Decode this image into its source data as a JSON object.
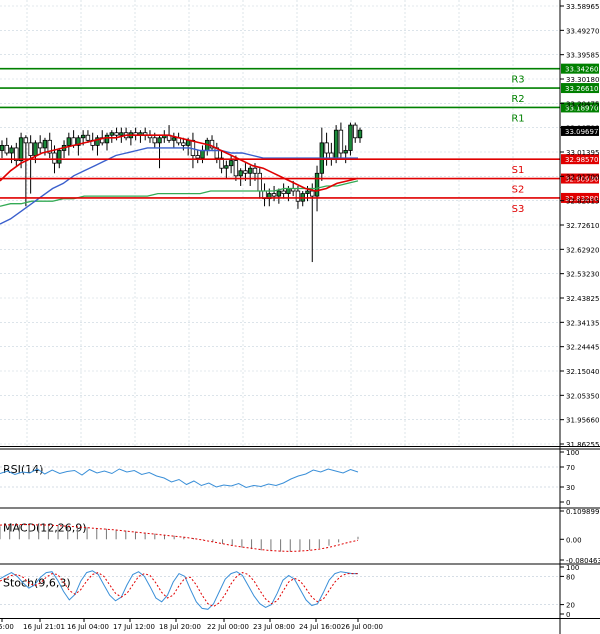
{
  "colors": {
    "resistance": "#008000",
    "support": "#e00000",
    "ma_fast": "#e00000",
    "ma_mid": "#3a5fcd",
    "ma_slow": "#33aa55",
    "candle": "#1b8a3a",
    "rsi": "#3a8fd8",
    "macd_signal": "#e00000",
    "stoch_main": "#3a8fd8",
    "stoch_signal": "#e00000",
    "grid": "#c8d3dd",
    "current_tag": "#000000"
  },
  "chart_data": {
    "type": "candlestick",
    "y_ticks": [
      "33.58965",
      "33.49270",
      "33.39585",
      "33.30180",
      "33.20475",
      "33.10790",
      "33.01395",
      "32.91700",
      "32.82015",
      "32.72610",
      "32.62920",
      "32.53230",
      "32.43825",
      "32.34135",
      "32.24445",
      "32.15040",
      "32.05350",
      "31.95660",
      "31.86255"
    ],
    "x_ticks": [
      "5:00",
      "16 Jul 21:01",
      "16 Jul 04:00",
      "17 Jul 12:00",
      "18 Jul 20:00",
      "22 Jul 00:00",
      "23 Jul 08:00",
      "24 Jul 16:00",
      "26 Jul 00:00"
    ],
    "ylim": [
      31.86255,
      33.58965
    ],
    "current_price": "33.09697",
    "levels": [
      {
        "name": "R3",
        "value": 33.3426,
        "tag": "33.34260",
        "kind": "resistance"
      },
      {
        "name": "R2",
        "value": 33.2661,
        "tag": "33.26610",
        "kind": "resistance"
      },
      {
        "name": "R1",
        "value": 33.1897,
        "tag": "33.18970",
        "kind": "resistance"
      },
      {
        "name": "S1",
        "value": 32.9857,
        "tag": "32.98570",
        "kind": "support"
      },
      {
        "name": "S2",
        "value": 32.9093,
        "tag": "32.90930",
        "kind": "support"
      },
      {
        "name": "S3",
        "value": 32.8328,
        "tag": "32.83280",
        "kind": "support"
      }
    ],
    "candles": [
      [
        33.02,
        33.06,
        32.99,
        33.04
      ],
      [
        33.04,
        33.07,
        33.0,
        33.01
      ],
      [
        33.01,
        33.04,
        32.97,
        33.03
      ],
      [
        33.03,
        33.05,
        32.96,
        32.98
      ],
      [
        32.98,
        33.09,
        32.95,
        33.07
      ],
      [
        33.07,
        33.08,
        32.8,
        33.05
      ],
      [
        33.05,
        33.08,
        32.85,
        33.0
      ],
      [
        33.0,
        33.06,
        32.97,
        33.05
      ],
      [
        33.05,
        33.08,
        33.01,
        33.03
      ],
      [
        33.03,
        33.07,
        33.0,
        33.06
      ],
      [
        33.06,
        33.09,
        32.99,
        33.01
      ],
      [
        33.01,
        33.04,
        32.93,
        32.97
      ],
      [
        32.97,
        33.03,
        32.95,
        33.02
      ],
      [
        33.02,
        33.06,
        32.99,
        33.04
      ],
      [
        33.04,
        33.09,
        33.0,
        33.07
      ],
      [
        33.07,
        33.1,
        33.03,
        33.04
      ],
      [
        33.04,
        33.08,
        33.0,
        33.07
      ],
      [
        33.07,
        33.1,
        33.04,
        33.08
      ],
      [
        33.08,
        33.1,
        33.05,
        33.06
      ],
      [
        33.06,
        33.09,
        33.02,
        33.04
      ],
      [
        33.04,
        33.08,
        33.0,
        33.07
      ],
      [
        33.07,
        33.1,
        33.04,
        33.05
      ],
      [
        33.05,
        33.09,
        33.02,
        33.08
      ],
      [
        33.08,
        33.1,
        33.05,
        33.09
      ],
      [
        33.09,
        33.11,
        33.06,
        33.08
      ],
      [
        33.08,
        33.11,
        33.05,
        33.09
      ],
      [
        33.09,
        33.11,
        33.06,
        33.07
      ],
      [
        33.07,
        33.1,
        33.04,
        33.09
      ],
      [
        33.09,
        33.11,
        33.06,
        33.08
      ],
      [
        33.08,
        33.1,
        33.05,
        33.09
      ],
      [
        33.09,
        33.11,
        33.06,
        33.08
      ],
      [
        33.08,
        33.1,
        33.05,
        33.07
      ],
      [
        33.07,
        33.09,
        33.03,
        33.05
      ],
      [
        33.05,
        33.08,
        32.95,
        33.07
      ],
      [
        33.07,
        33.1,
        33.05,
        33.08
      ],
      [
        33.08,
        33.12,
        33.05,
        33.06
      ],
      [
        33.06,
        33.09,
        33.03,
        33.07
      ],
      [
        33.07,
        33.09,
        33.04,
        33.05
      ],
      [
        33.05,
        33.07,
        33.02,
        33.04
      ],
      [
        33.04,
        33.07,
        33.0,
        33.06
      ],
      [
        33.06,
        33.09,
        32.95,
        33.0
      ],
      [
        33.0,
        33.02,
        32.97,
        32.99
      ],
      [
        32.99,
        33.04,
        32.97,
        33.02
      ],
      [
        33.02,
        33.07,
        33.0,
        33.06
      ],
      [
        33.06,
        33.08,
        33.02,
        33.03
      ],
      [
        33.03,
        33.05,
        32.97,
        32.99
      ],
      [
        32.99,
        33.02,
        32.93,
        32.95
      ],
      [
        32.95,
        32.98,
        32.91,
        32.96
      ],
      [
        32.96,
        33.0,
        32.93,
        32.98
      ],
      [
        32.98,
        33.0,
        32.9,
        32.92
      ],
      [
        32.92,
        32.95,
        32.88,
        32.94
      ],
      [
        32.94,
        32.97,
        32.9,
        32.93
      ],
      [
        32.93,
        32.96,
        32.88,
        32.95
      ],
      [
        32.95,
        32.97,
        32.9,
        32.93
      ],
      [
        32.93,
        32.95,
        32.83,
        32.86
      ],
      [
        32.86,
        32.89,
        32.8,
        32.83
      ],
      [
        32.83,
        32.87,
        32.8,
        32.85
      ],
      [
        32.85,
        32.88,
        32.82,
        32.84
      ],
      [
        32.84,
        32.87,
        32.81,
        32.86
      ],
      [
        32.86,
        32.89,
        32.83,
        32.85
      ],
      [
        32.85,
        32.88,
        32.82,
        32.87
      ],
      [
        32.87,
        32.9,
        32.84,
        32.86
      ],
      [
        32.86,
        32.88,
        32.79,
        32.82
      ],
      [
        32.82,
        32.86,
        32.8,
        32.85
      ],
      [
        32.85,
        32.88,
        32.82,
        32.86
      ],
      [
        32.86,
        32.89,
        32.58,
        32.84
      ],
      [
        32.84,
        32.96,
        32.78,
        32.93
      ],
      [
        32.93,
        33.11,
        32.9,
        33.05
      ],
      [
        33.05,
        33.09,
        32.96,
        33.01
      ],
      [
        33.01,
        33.05,
        32.96,
        32.99
      ],
      [
        32.99,
        33.12,
        32.97,
        33.1
      ],
      [
        33.1,
        33.13,
        32.99,
        33.01
      ],
      [
        33.01,
        33.04,
        32.97,
        33.02
      ],
      [
        33.02,
        33.13,
        33.0,
        33.12
      ],
      [
        33.12,
        33.13,
        33.05,
        33.07
      ],
      [
        33.07,
        33.11,
        33.05,
        33.1
      ]
    ],
    "ma_fast": [
      32.9,
      32.94,
      32.97,
      32.99,
      33.01,
      33.02,
      33.03,
      33.04,
      33.05,
      33.06,
      33.07,
      33.07,
      33.08,
      33.08,
      33.08,
      33.08,
      33.08,
      33.07,
      33.06,
      33.05,
      33.04,
      33.02,
      33.0,
      32.98,
      32.96,
      32.95,
      32.93,
      32.91,
      32.89,
      32.87,
      32.86,
      32.87,
      32.89,
      32.9,
      32.91
    ],
    "ma_mid": [
      32.73,
      32.75,
      32.78,
      32.81,
      32.84,
      32.87,
      32.89,
      32.92,
      32.94,
      32.96,
      32.98,
      33.0,
      33.01,
      33.02,
      33.03,
      33.03,
      33.03,
      33.03,
      33.03,
      33.02,
      33.02,
      33.02,
      33.01,
      33.01,
      33.0,
      32.99,
      32.99,
      32.99,
      32.99,
      32.99,
      32.99,
      32.99,
      32.99,
      32.99,
      32.99
    ],
    "ma_slow": [
      32.8,
      32.81,
      32.81,
      32.82,
      32.82,
      32.82,
      32.83,
      32.83,
      32.84,
      32.84,
      32.84,
      32.84,
      32.84,
      32.84,
      32.84,
      32.85,
      32.85,
      32.85,
      32.85,
      32.85,
      32.86,
      32.86,
      32.86,
      32.86,
      32.86,
      32.86,
      32.86,
      32.87,
      32.87,
      32.87,
      32.87,
      32.88,
      32.88,
      32.89,
      32.9
    ],
    "rsi": {
      "label": "RSI(14)",
      "ticks": [
        "100",
        "70",
        "30",
        "0"
      ],
      "values": [
        57,
        62,
        55,
        60,
        58,
        66,
        56,
        64,
        57,
        61,
        63,
        54,
        65,
        58,
        62,
        57,
        66,
        60,
        63,
        55,
        59,
        52,
        48,
        40,
        45,
        35,
        42,
        33,
        38,
        30,
        34,
        32,
        37,
        29,
        33,
        31,
        36,
        33,
        38,
        46,
        52,
        56,
        64,
        60,
        66,
        62,
        58,
        65,
        60
      ]
    },
    "macd": {
      "label": "MACD(12,26,9)",
      "ticks": [
        "0.109899",
        "0.00",
        "-0.080463"
      ],
      "ylim": [
        -0.080463,
        0.109899
      ],
      "histogram": [
        0.05,
        0.055,
        0.057,
        0.058,
        0.058,
        0.057,
        0.055,
        0.052,
        0.05,
        0.047,
        0.044,
        0.041,
        0.038,
        0.034,
        0.03,
        0.026,
        0.022,
        0.018,
        0.014,
        0.01,
        0.005,
        -0.002,
        -0.01,
        -0.018,
        -0.025,
        -0.032,
        -0.038,
        -0.043,
        -0.046,
        -0.048,
        -0.048,
        -0.046,
        -0.042,
        -0.035,
        -0.025,
        -0.012,
        0.0,
        0.01
      ],
      "signal": [
        0.055,
        0.056,
        0.057,
        0.057,
        0.056,
        0.055,
        0.053,
        0.051,
        0.048,
        0.045,
        0.042,
        0.039,
        0.036,
        0.032,
        0.028,
        0.024,
        0.02,
        0.016,
        0.012,
        0.008,
        0.003,
        -0.003,
        -0.01,
        -0.017,
        -0.024,
        -0.03,
        -0.035,
        -0.04,
        -0.044,
        -0.046,
        -0.047,
        -0.046,
        -0.043,
        -0.038,
        -0.031,
        -0.022,
        -0.012,
        -0.004
      ]
    },
    "stoch": {
      "label": "Stoch(9,6,3)",
      "ticks": [
        "100",
        "80",
        "20",
        "0"
      ],
      "main": [
        75,
        82,
        88,
        80,
        66,
        55,
        62,
        78,
        88,
        90,
        72,
        48,
        30,
        42,
        70,
        88,
        92,
        84,
        62,
        40,
        28,
        36,
        62,
        84,
        90,
        80,
        58,
        34,
        26,
        40,
        68,
        86,
        80,
        52,
        26,
        12,
        10,
        22,
        48,
        74,
        86,
        90,
        82,
        60,
        38,
        22,
        14,
        20,
        44,
        72,
        82,
        74,
        52,
        30,
        18,
        22,
        46,
        72,
        86,
        90,
        88,
        86,
        86
      ],
      "signal": [
        70,
        76,
        82,
        84,
        78,
        66,
        60,
        66,
        78,
        86,
        84,
        68,
        50,
        42,
        52,
        70,
        84,
        88,
        80,
        62,
        44,
        36,
        44,
        62,
        80,
        86,
        82,
        66,
        46,
        34,
        40,
        60,
        76,
        78,
        62,
        40,
        22,
        16,
        24,
        42,
        64,
        80,
        88,
        84,
        70,
        50,
        32,
        22,
        28,
        48,
        68,
        76,
        70,
        54,
        36,
        26,
        32,
        50,
        68,
        80,
        86,
        86,
        86
      ]
    }
  }
}
